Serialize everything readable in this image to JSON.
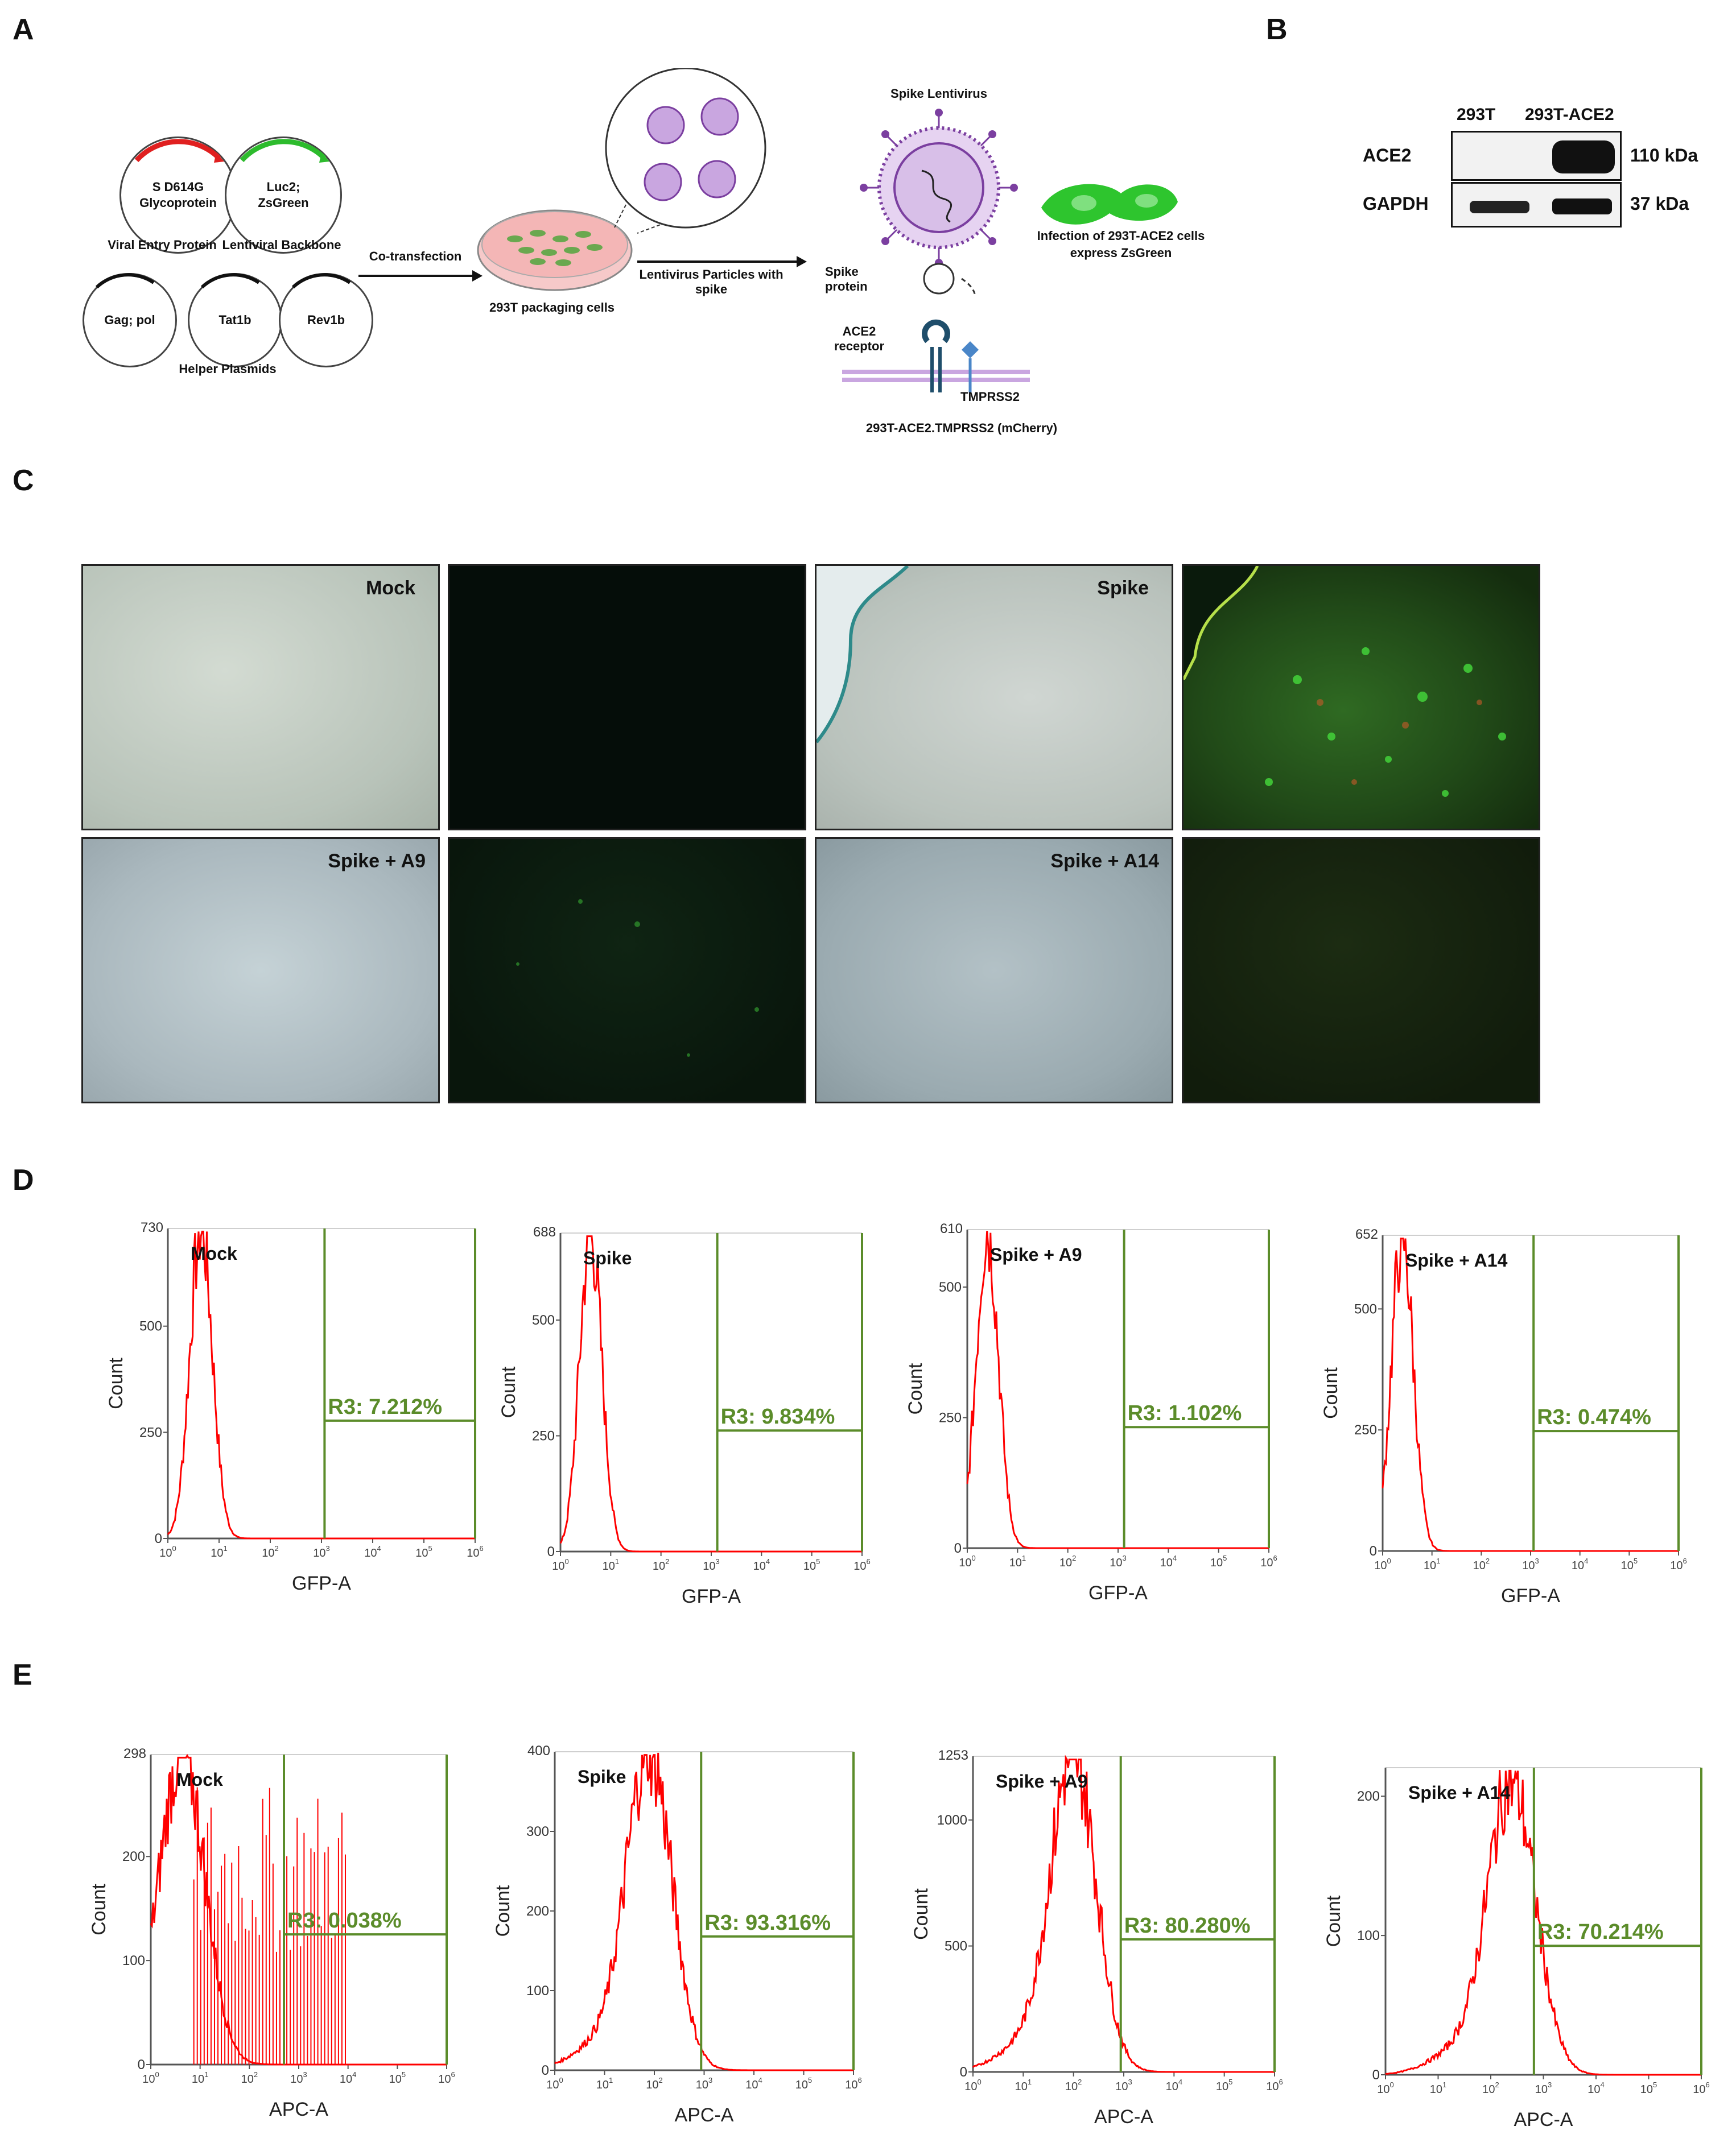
{
  "panels": {
    "a": {
      "letter": "A",
      "plasmids": {
        "spike": "S D614G Glycoprotein",
        "backbone": "Luc2; ZsGreen",
        "gagpol": "Gag; pol",
        "tat": "Tat1b",
        "rev": "Rev1b"
      },
      "captions": {
        "viral_entry": "Viral Entry Protein",
        "lentiviral": "Lentiviral Backbone",
        "helper": "Helper Plasmids",
        "cotransfection": "Co-transfection",
        "packaging": "293T packaging cells",
        "particles": "Lentivirus Particles with spike",
        "spike_lentivirus": "Spike Lentivirus",
        "spike_protein": "Spike protein",
        "ace2_receptor": "ACE2 receptor",
        "tmprss2": "TMPRSS2",
        "target_cells": "293T-ACE2.TMPRSS2 (mCherry)",
        "infection": "Infection of 293T-ACE2 cells express ZsGreen"
      }
    },
    "b": {
      "letter": "B",
      "lanes": [
        "293T",
        "293T-ACE2"
      ],
      "rows": [
        {
          "name": "ACE2",
          "size": "110 kDa"
        },
        {
          "name": "GAPDH",
          "size": "37 kDa"
        }
      ]
    },
    "c": {
      "letter": "C",
      "labels": [
        "Mock",
        "Spike",
        "Spike + A9",
        "Spike + A14"
      ]
    },
    "d": {
      "letter": "D"
    },
    "e": {
      "letter": "E"
    }
  },
  "colors": {
    "gate": "#5b8c2a",
    "histogram": "#ff0000",
    "gfp": "#22c02a"
  },
  "chart_data": [
    {
      "type": "histogram",
      "panel": "D",
      "label": "Mock",
      "xlabel": "GFP-A",
      "ylabel": "Count",
      "ymax_label": "730",
      "yticks": [
        "0",
        "250",
        "500"
      ],
      "gate": "R3: 7.212%",
      "xscale": "log",
      "xlim": [
        0,
        6
      ],
      "peak": [
        0.65,
        730
      ]
    },
    {
      "type": "histogram",
      "panel": "D",
      "label": "Spike",
      "xlabel": "GFP-A",
      "ylabel": "Count",
      "ymax_label": "688",
      "yticks": [
        "0",
        "250",
        "500"
      ],
      "gate": "R3: 9.834%",
      "xscale": "log",
      "xlim": [
        0,
        6
      ],
      "peak": [
        0.6,
        688
      ]
    },
    {
      "type": "histogram",
      "panel": "D",
      "label": "Spike + A9",
      "xlabel": "GFP-A",
      "ylabel": "Count",
      "ymax_label": "610",
      "yticks": [
        "0",
        "250",
        "500"
      ],
      "gate": "R3: 1.102%",
      "xscale": "log",
      "xlim": [
        0,
        6
      ],
      "peak": [
        0.4,
        610
      ]
    },
    {
      "type": "histogram",
      "panel": "D",
      "label": "Spike + A14",
      "xlabel": "GFP-A",
      "ylabel": "Count",
      "ymax_label": "652",
      "yticks": [
        "0",
        "250",
        "500"
      ],
      "gate": "R3: 0.474%",
      "xscale": "log",
      "xlim": [
        0,
        6
      ],
      "peak": [
        0.4,
        652
      ]
    },
    {
      "type": "histogram",
      "panel": "E",
      "label": "Mock",
      "xlabel": "APC-A",
      "ylabel": "Count",
      "ymax_label": "298",
      "yticks": [
        "0",
        "100",
        "200"
      ],
      "gate": "R3: 0.038%",
      "xscale": "log",
      "xlim": [
        0,
        6
      ],
      "peak": [
        0.65,
        298
      ]
    },
    {
      "type": "histogram",
      "panel": "E",
      "label": "Spike",
      "xlabel": "APC-A",
      "ylabel": "Count",
      "ymax_label": "400",
      "yticks": [
        "0",
        "100",
        "200",
        "300"
      ],
      "gate": "R3: 93.316%",
      "xscale": "log",
      "xlim": [
        0,
        6
      ],
      "peak": [
        1.9,
        400
      ]
    },
    {
      "type": "histogram",
      "panel": "E",
      "label": "Spike + A9",
      "xlabel": "APC-A",
      "ylabel": "Count",
      "ymax_label": "1253",
      "yticks": [
        "0",
        "500",
        "1000"
      ],
      "gate": "R3: 80.280%",
      "xscale": "log",
      "xlim": [
        0,
        6
      ],
      "peak": [
        2.0,
        1253
      ]
    },
    {
      "type": "histogram",
      "panel": "E",
      "label": "Spike + A14",
      "xlabel": "APC-A",
      "ylabel": "Count",
      "ymax_label": "",
      "yticks": [
        "0",
        "100",
        "200"
      ],
      "gate": "R3: 70.214%",
      "xscale": "log",
      "xlim": [
        0,
        6
      ],
      "peak": [
        2.4,
        210
      ]
    }
  ]
}
